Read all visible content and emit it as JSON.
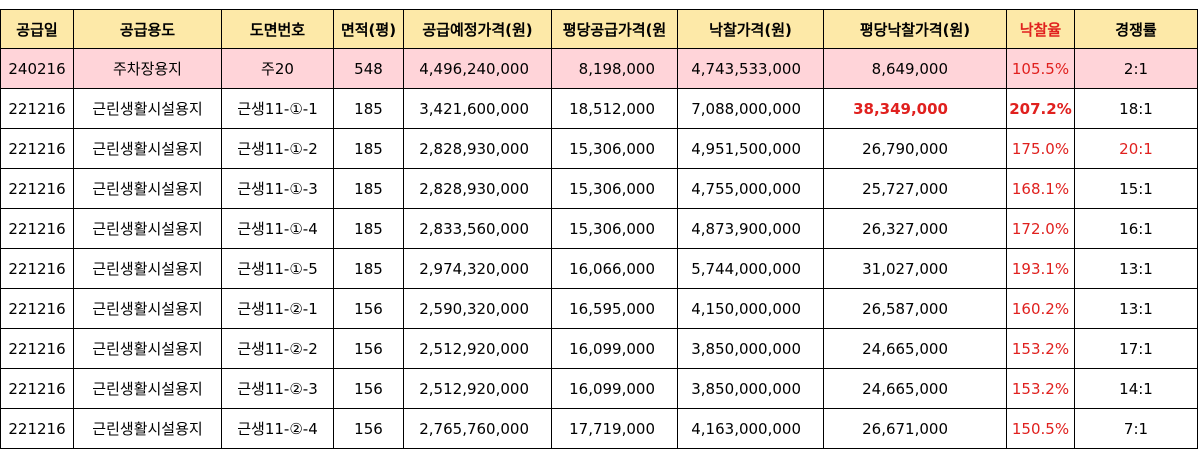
{
  "headers": [
    "공급일",
    "공급용도",
    "도면번호",
    "면적(평)",
    "공급예정가격(원)",
    "평당공급가격(원",
    "낙찰가격(원)",
    "평당낙찰가격(원)",
    "낙찰율",
    "경쟁률"
  ],
  "rows": [
    {
      "date": "240216",
      "use": "주차장용지",
      "lot": "주20",
      "area": "548",
      "planned": "4,496,240,000",
      "per_supply": "8,198,000",
      "winning": "4,743,533,000",
      "per_winning": "8,649,000",
      "rate": "105.5%",
      "competition": "2:1"
    },
    {
      "date": "221216",
      "use": "근린생활시설용지",
      "lot": "근생11-①-1",
      "area": "185",
      "planned": "3,421,600,000",
      "per_supply": "18,512,000",
      "winning": "7,088,000,000",
      "per_winning": "38,349,000",
      "rate": "207.2%",
      "competition": "18:1"
    },
    {
      "date": "221216",
      "use": "근린생활시설용지",
      "lot": "근생11-①-2",
      "area": "185",
      "planned": "2,828,930,000",
      "per_supply": "15,306,000",
      "winning": "4,951,500,000",
      "per_winning": "26,790,000",
      "rate": "175.0%",
      "competition": "20:1"
    },
    {
      "date": "221216",
      "use": "근린생활시설용지",
      "lot": "근생11-①-3",
      "area": "185",
      "planned": "2,828,930,000",
      "per_supply": "15,306,000",
      "winning": "4,755,000,000",
      "per_winning": "25,727,000",
      "rate": "168.1%",
      "competition": "15:1"
    },
    {
      "date": "221216",
      "use": "근린생활시설용지",
      "lot": "근생11-①-4",
      "area": "185",
      "planned": "2,833,560,000",
      "per_supply": "15,306,000",
      "winning": "4,873,900,000",
      "per_winning": "26,327,000",
      "rate": "172.0%",
      "competition": "16:1"
    },
    {
      "date": "221216",
      "use": "근린생활시설용지",
      "lot": "근생11-①-5",
      "area": "185",
      "planned": "2,974,320,000",
      "per_supply": "16,066,000",
      "winning": "5,744,000,000",
      "per_winning": "31,027,000",
      "rate": "193.1%",
      "competition": "13:1"
    },
    {
      "date": "221216",
      "use": "근린생활시설용지",
      "lot": "근생11-②-1",
      "area": "156",
      "planned": "2,590,320,000",
      "per_supply": "16,595,000",
      "winning": "4,150,000,000",
      "per_winning": "26,587,000",
      "rate": "160.2%",
      "competition": "13:1"
    },
    {
      "date": "221216",
      "use": "근린생활시설용지",
      "lot": "근생11-②-2",
      "area": "156",
      "planned": "2,512,920,000",
      "per_supply": "16,099,000",
      "winning": "3,850,000,000",
      "per_winning": "24,665,000",
      "rate": "153.2%",
      "competition": "17:1"
    },
    {
      "date": "221216",
      "use": "근린생활시설용지",
      "lot": "근생11-②-3",
      "area": "156",
      "planned": "2,512,920,000",
      "per_supply": "16,099,000",
      "winning": "3,850,000,000",
      "per_winning": "24,665,000",
      "rate": "153.2%",
      "competition": "14:1"
    },
    {
      "date": "221216",
      "use": "근린생활시설용지",
      "lot": "근생11-②-4",
      "area": "156",
      "planned": "2,765,760,000",
      "per_supply": "17,719,000",
      "winning": "4,163,000,000",
      "per_winning": "26,671,000",
      "rate": "150.5%",
      "competition": "7:1"
    }
  ],
  "colors": {
    "header_bg": "#fde9a8",
    "highlight_row_bg": "#ffd4d9",
    "accent_red": "#e0201e"
  }
}
